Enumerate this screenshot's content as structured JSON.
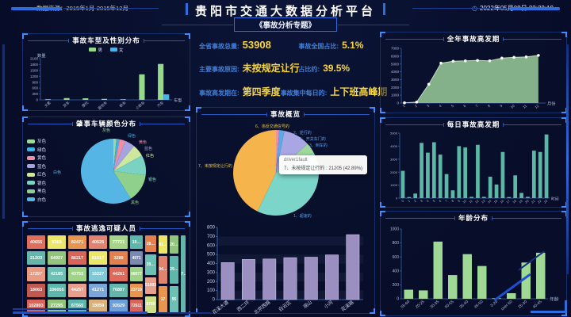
{
  "header": {
    "data_source": "数据来源：2015年1月-2015年12月",
    "title": "贵阳市交通大数据分析平台",
    "subtitle": "《事故分析专题》",
    "clock_icon": "◷",
    "datetime": "2022年05月08日 22:22:19"
  },
  "stats": {
    "items": [
      {
        "label": "全省事故总量:",
        "value": "53908"
      },
      {
        "label": "事故全国占比:",
        "value": "5.1%"
      },
      {
        "label": "主要事故原因:",
        "value": "未按规定让行"
      },
      {
        "label": "占比约:",
        "value": "39.5%"
      },
      {
        "label": "事故高发期在:",
        "value": "第四季度"
      },
      {
        "label": "事故集中每日的:",
        "value": "上下班高峰期"
      }
    ]
  },
  "panels": {
    "overview_title": "事故概览"
  },
  "tooltip": {
    "title": "driver1fault",
    "text": "7、未按规定让行的 : 21205 (42.89%)"
  },
  "colors": {
    "accent_blue": "#2e6de0",
    "label_blue": "#3f7fd9",
    "value_yellow": "#f7d53d"
  },
  "suspects": {
    "title": "事故逃逸可疑人员",
    "cells": [
      {
        "v": "40655",
        "c": "#df6e5d"
      },
      {
        "v": "5369",
        "c": "#ece76a"
      },
      {
        "v": "82471",
        "c": "#e8954f"
      },
      {
        "v": "40525",
        "c": "#e2836f"
      },
      {
        "v": "77721",
        "c": "#a8d48a"
      },
      {
        "v": "21203",
        "c": "#66b5ab"
      },
      {
        "v": "64927",
        "c": "#93c47d"
      },
      {
        "v": "86217",
        "c": "#d96459"
      },
      {
        "v": "81017",
        "c": "#ece76a"
      },
      {
        "v": "3289",
        "c": "#e2814e"
      },
      {
        "v": "17297",
        "c": "#e89a82"
      },
      {
        "v": "42185",
        "c": "#6cc1b4"
      },
      {
        "v": "43753",
        "c": "#9fd387"
      },
      {
        "v": "16227",
        "c": "#7ec8d8"
      },
      {
        "v": "44261",
        "c": "#de6a5a"
      },
      {
        "v": "18063",
        "c": "#c05a50"
      },
      {
        "v": "106055",
        "c": "#5fb7ac"
      },
      {
        "v": "44257",
        "c": "#e8a08e"
      },
      {
        "v": "41271",
        "c": "#7aa6d8"
      },
      {
        "v": "76897",
        "c": "#66b5ab"
      },
      {
        "v": "102893",
        "c": "#d96459"
      },
      {
        "v": "27295",
        "c": "#93c47d"
      },
      {
        "v": "67565",
        "c": "#5fb7ac"
      },
      {
        "v": "18059",
        "c": "#d8b27a"
      },
      {
        "v": "92629",
        "c": "#6f9fd8"
      }
    ],
    "right_columns": [
      {
        "cells": [
          {
            "v": "19…",
            "c": "#5fb7ac",
            "f": 5
          },
          {
            "v": "4971",
            "c": "#7c8ab0",
            "f": 5
          },
          {
            "v": "98077",
            "c": "#9fd387",
            "f": 5
          },
          {
            "v": "23719",
            "c": "#e8954f",
            "f": 5
          },
          {
            "v": "72611",
            "c": "#d96459",
            "f": 5
          }
        ]
      },
      {
        "cells": [
          {
            "v": "28…",
            "c": "#e2814e",
            "f": 5
          },
          {
            "v": "39…",
            "c": "#6cc1b4",
            "f": 6
          },
          {
            "v": "51093",
            "c": "#e8a08e",
            "f": 5
          },
          {
            "v": "8789",
            "c": "#cfe08a",
            "f": 5
          }
        ]
      },
      {
        "cells": [
          {
            "v": "81…",
            "c": "#ece76a",
            "f": 4
          },
          {
            "v": "94…",
            "c": "#e2836f",
            "f": 6
          },
          {
            "v": "17",
            "c": "#e8954f",
            "f": 6
          }
        ]
      },
      {
        "cells": [
          {
            "v": "20…",
            "c": "#93c47d",
            "f": 4
          },
          {
            "v": "29…",
            "c": "#5fb7ac",
            "f": 6
          },
          {
            "v": "95",
            "c": "#6cc1b4",
            "f": 6
          }
        ]
      },
      {
        "cells": [
          {
            "v": "37…",
            "c": "#66b5ab",
            "f": 4
          }
        ]
      }
    ]
  },
  "chart_data": [
    {
      "id": "vehicle_gender",
      "type": "grouped-bar",
      "title": "事故车型及性别分布",
      "xlabel": "车型",
      "ylabel": "数量",
      "ylim": [
        0,
        2100
      ],
      "ystep": 300,
      "categories": [
        "大客",
        "货车",
        "摩托",
        "面包车",
        "轿车",
        "小轿车",
        "汽车"
      ],
      "series": [
        {
          "name": "男",
          "color": "#95d98b",
          "values": [
            30,
            90,
            80,
            50,
            25,
            1300,
            1830
          ]
        },
        {
          "name": "女",
          "color": "#45b4e8",
          "values": [
            0,
            0,
            0,
            0,
            0,
            0,
            280
          ]
        }
      ],
      "legend_position": "top"
    },
    {
      "id": "vehicle_color",
      "type": "pie",
      "title": "肇事车辆颜色分布",
      "legend_position": "left",
      "slices": [
        {
          "name": "灰色",
          "pct": 1.5,
          "color": "#9ed89a"
        },
        {
          "name": "绿色",
          "pct": 1.5,
          "color": "#3fb1e3"
        },
        {
          "name": "黄色",
          "pct": 3,
          "color": "#ee8fa4"
        },
        {
          "name": "蓝色",
          "pct": 5,
          "color": "#a5a3e0"
        },
        {
          "name": "红色",
          "pct": 6,
          "color": "#cde79e"
        },
        {
          "name": "银色",
          "pct": 10,
          "color": "#7ad2c2"
        },
        {
          "name": "黑色",
          "pct": 14,
          "color": "#8fd18c"
        },
        {
          "name": "白色",
          "pct": 59,
          "color": "#55b6e5"
        }
      ]
    },
    {
      "id": "fault_pie",
      "type": "pie",
      "title": "事故概览",
      "slices": [
        {
          "name": "6、违反交通信号的",
          "pct": 1.2,
          "color": "#ee8fa4"
        },
        {
          "name": "2、逆行的",
          "pct": 2.0,
          "color": "#5aa8e8"
        },
        {
          "name": "5、开关车门的",
          "pct": 10.0,
          "color": "#a9a6e3"
        },
        {
          "name": "3、倒车的",
          "pct": 4.0,
          "color": "#9ed89a"
        },
        {
          "name": "1、超速的",
          "pct": 39.91,
          "color": "#7bd5c8"
        },
        {
          "name": "7、未按规定让行的",
          "pct": 42.89,
          "color": "#f6b44d"
        }
      ],
      "highlight_value": "21205 (42.89%)"
    },
    {
      "id": "road_bar",
      "type": "bar",
      "categories": [
        "花溪大道",
        "西二环",
        "北京西路",
        "白云区",
        "观山",
        "小河",
        "花溪路"
      ],
      "values": [
        410,
        445,
        450,
        465,
        470,
        495,
        720
      ],
      "color": "#9a8fc0",
      "ylim": [
        0,
        800
      ],
      "ystep": 100,
      "grid": "striped"
    },
    {
      "id": "yearly",
      "type": "area",
      "title": "全年事故高发期",
      "xlabel": "月份",
      "x": [
        "1",
        "2",
        "3",
        "4",
        "5",
        "6",
        "7",
        "8",
        "9",
        "10",
        "11",
        "12"
      ],
      "values": [
        30,
        120,
        2400,
        5100,
        5350,
        5400,
        5450,
        5400,
        5750,
        5850,
        5900,
        6100
      ],
      "color": "#8fbf91",
      "line_color": "#c2dcc0",
      "marker_color": "#ffffff",
      "ylim": [
        0,
        7000
      ],
      "ystep": 1000
    },
    {
      "id": "daily",
      "type": "bar",
      "title": "每日事故高发期",
      "xlabel": "时间",
      "categories": [
        "0",
        "1",
        "2",
        "3",
        "4",
        "5",
        "6",
        "7",
        "8",
        "9",
        "10",
        "11",
        "12",
        "13",
        "14",
        "15",
        "16",
        "17",
        "18",
        "19",
        "20",
        "21",
        "22",
        "23"
      ],
      "values": [
        2100,
        80,
        350,
        4250,
        3500,
        4300,
        3350,
        1850,
        600,
        4000,
        3900,
        100,
        4100,
        100,
        1650,
        1050,
        3550,
        80,
        1750,
        400,
        100,
        3650,
        3550,
        4900
      ],
      "color": "#5cb8a6",
      "ylim": [
        0,
        5000
      ],
      "ystep": 1000
    },
    {
      "id": "age",
      "type": "bar",
      "title": "年龄分布",
      "xlabel": "年龄",
      "categories": [
        "55-60",
        "20-25",
        "30-35",
        "50-55",
        "35-40",
        "45-50",
        "0-20",
        "over 60",
        "25-30",
        "40-45"
      ],
      "values": [
        130,
        120,
        820,
        340,
        640,
        470,
        8,
        80,
        520,
        660
      ],
      "color": "#a0d995",
      "ylim": [
        0,
        1000
      ],
      "ystep": 200
    }
  ]
}
